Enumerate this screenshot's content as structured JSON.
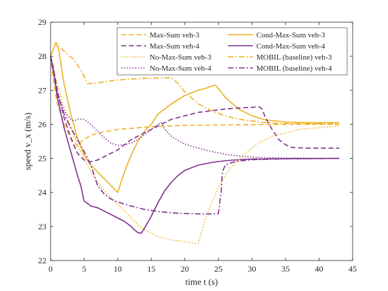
{
  "chart_data": {
    "type": "line",
    "xlabel": "time t (s)",
    "ylabel": "speed v_x (m/s)",
    "xlim": [
      0,
      45
    ],
    "ylim": [
      22,
      29
    ],
    "xticks": [
      0,
      5,
      10,
      15,
      20,
      25,
      30,
      35,
      40,
      45
    ],
    "yticks": [
      22,
      23,
      24,
      25,
      26,
      27,
      28,
      29
    ],
    "grid": false,
    "legend_position": "top-right",
    "colors": {
      "veh3": "#EDB120",
      "veh4": "#7E2F8E",
      "axis": "#262626"
    },
    "series": [
      {
        "name": "Max-Sum veh-3",
        "vehicle": "veh3",
        "style": "dashed",
        "points": [
          [
            0,
            28.0
          ],
          [
            0.5,
            27.2
          ],
          [
            1,
            26.6
          ],
          [
            2,
            26.0
          ],
          [
            3,
            25.6
          ],
          [
            4,
            25.35
          ],
          [
            4.6,
            25.5
          ],
          [
            5,
            25.55
          ],
          [
            6,
            25.68
          ],
          [
            8,
            25.78
          ],
          [
            10,
            25.85
          ],
          [
            15,
            25.93
          ],
          [
            20,
            25.97
          ],
          [
            25,
            25.98
          ],
          [
            30,
            25.99
          ],
          [
            35,
            26.0
          ],
          [
            43,
            26.0
          ]
        ]
      },
      {
        "name": "Cond-Max-Sum veh-3",
        "vehicle": "veh3",
        "style": "solid",
        "points": [
          [
            0,
            28.0
          ],
          [
            0.8,
            28.4
          ],
          [
            1.2,
            28.2
          ],
          [
            2,
            27.2
          ],
          [
            3,
            26.3
          ],
          [
            4,
            25.6
          ],
          [
            5,
            25.1
          ],
          [
            6,
            24.8
          ],
          [
            7,
            24.6
          ],
          [
            8,
            24.4
          ],
          [
            9,
            24.2
          ],
          [
            10,
            24.0
          ],
          [
            10.5,
            24.3
          ],
          [
            11,
            24.6
          ],
          [
            12,
            25.1
          ],
          [
            13,
            25.5
          ],
          [
            14,
            25.8
          ],
          [
            15,
            26.0
          ],
          [
            16,
            26.3
          ],
          [
            18,
            26.6
          ],
          [
            20,
            26.85
          ],
          [
            22,
            27.0
          ],
          [
            23,
            27.05
          ],
          [
            24,
            27.12
          ],
          [
            24.6,
            27.15
          ],
          [
            26,
            26.8
          ],
          [
            28,
            26.45
          ],
          [
            30,
            26.25
          ],
          [
            32,
            26.13
          ],
          [
            35,
            26.07
          ],
          [
            38,
            26.05
          ],
          [
            43,
            26.05
          ]
        ]
      },
      {
        "name": "Max-Sum veh-4",
        "vehicle": "veh4",
        "style": "dashed",
        "points": [
          [
            0,
            28.0
          ],
          [
            0.3,
            27.8
          ],
          [
            1,
            27.0
          ],
          [
            2,
            26.2
          ],
          [
            3,
            25.6
          ],
          [
            4,
            25.15
          ],
          [
            5,
            24.95
          ],
          [
            6,
            24.9
          ],
          [
            7,
            24.95
          ],
          [
            8,
            25.05
          ],
          [
            9,
            25.15
          ],
          [
            10,
            25.25
          ],
          [
            11,
            25.4
          ],
          [
            12,
            25.55
          ],
          [
            13,
            25.65
          ],
          [
            14,
            25.75
          ],
          [
            15,
            25.85
          ],
          [
            16,
            25.95
          ],
          [
            17,
            26.05
          ],
          [
            18,
            26.15
          ],
          [
            20,
            26.25
          ],
          [
            22,
            26.35
          ],
          [
            24,
            26.4
          ],
          [
            26,
            26.45
          ],
          [
            28,
            26.48
          ],
          [
            30,
            26.5
          ],
          [
            31,
            26.52
          ],
          [
            31.5,
            26.45
          ],
          [
            32,
            26.2
          ],
          [
            33,
            25.85
          ],
          [
            34,
            25.55
          ],
          [
            35,
            25.4
          ],
          [
            36,
            25.32
          ],
          [
            38,
            25.3
          ],
          [
            43,
            25.3
          ]
        ]
      },
      {
        "name": "Cond-Max-Sum veh-4",
        "vehicle": "veh4",
        "style": "solid",
        "points": [
          [
            0,
            28.0
          ],
          [
            0.5,
            27.5
          ],
          [
            1,
            26.8
          ],
          [
            2,
            25.9
          ],
          [
            3,
            25.2
          ],
          [
            4,
            24.5
          ],
          [
            4.5,
            24.2
          ],
          [
            5,
            23.75
          ],
          [
            6,
            23.6
          ],
          [
            7,
            23.55
          ],
          [
            8,
            23.45
          ],
          [
            9,
            23.35
          ],
          [
            10,
            23.25
          ],
          [
            11,
            23.15
          ],
          [
            12,
            23.0
          ],
          [
            12.5,
            22.9
          ],
          [
            13,
            22.82
          ],
          [
            13.5,
            22.8
          ],
          [
            14,
            22.95
          ],
          [
            15,
            23.3
          ],
          [
            16,
            23.7
          ],
          [
            17,
            24.05
          ],
          [
            18,
            24.3
          ],
          [
            19,
            24.5
          ],
          [
            20,
            24.65
          ],
          [
            22,
            24.8
          ],
          [
            24,
            24.88
          ],
          [
            26,
            24.93
          ],
          [
            28,
            24.96
          ],
          [
            30,
            24.98
          ],
          [
            35,
            24.99
          ],
          [
            43,
            25.0
          ]
        ]
      },
      {
        "name": "No-Max-Sum veh-3",
        "vehicle": "veh3",
        "style": "dotted",
        "points": [
          [
            0,
            28.0
          ],
          [
            1,
            27.2
          ],
          [
            2,
            26.5
          ],
          [
            3,
            25.9
          ],
          [
            4,
            25.4
          ],
          [
            5,
            25.0
          ],
          [
            6,
            24.6
          ],
          [
            7,
            24.3
          ],
          [
            8,
            24.05
          ],
          [
            9,
            23.85
          ],
          [
            10,
            23.65
          ],
          [
            11,
            23.45
          ],
          [
            12,
            23.25
          ],
          [
            13,
            23.05
          ],
          [
            14,
            22.9
          ],
          [
            15,
            22.8
          ],
          [
            16,
            22.7
          ],
          [
            18,
            22.6
          ],
          [
            20,
            22.55
          ],
          [
            21,
            22.52
          ],
          [
            22,
            22.5
          ],
          [
            23,
            23.2
          ],
          [
            24,
            23.7
          ],
          [
            25,
            24.15
          ],
          [
            26,
            24.5
          ],
          [
            27,
            24.75
          ],
          [
            28,
            24.95
          ],
          [
            29,
            25.15
          ],
          [
            30,
            25.3
          ],
          [
            31,
            25.45
          ],
          [
            32,
            25.55
          ],
          [
            33,
            25.65
          ],
          [
            35,
            25.75
          ],
          [
            37,
            25.85
          ],
          [
            40,
            25.9
          ],
          [
            43,
            25.95
          ]
        ]
      },
      {
        "name": "MOBIL (baseline) veh-3",
        "vehicle": "veh3",
        "style": "dashdot",
        "points": [
          [
            0,
            28.0
          ],
          [
            0.8,
            28.4
          ],
          [
            1.5,
            28.25
          ],
          [
            2.5,
            28.05
          ],
          [
            3.5,
            27.9
          ],
          [
            4.5,
            27.6
          ],
          [
            5.5,
            27.2
          ],
          [
            6,
            27.2
          ],
          [
            7,
            27.22
          ],
          [
            8,
            27.25
          ],
          [
            10,
            27.3
          ],
          [
            12,
            27.33
          ],
          [
            14,
            27.35
          ],
          [
            16,
            27.36
          ],
          [
            18,
            27.37
          ],
          [
            19,
            27.2
          ],
          [
            20,
            26.95
          ],
          [
            22,
            26.6
          ],
          [
            24,
            26.4
          ],
          [
            26,
            26.25
          ],
          [
            28,
            26.15
          ],
          [
            30,
            26.1
          ],
          [
            32,
            26.05
          ],
          [
            34,
            26.03
          ],
          [
            36,
            26.02
          ],
          [
            43,
            26.02
          ]
        ]
      },
      {
        "name": "No-Max-Sum veh-4",
        "vehicle": "veh4",
        "style": "dotted",
        "points": [
          [
            0,
            28.0
          ],
          [
            0.5,
            27.4
          ],
          [
            1,
            26.9
          ],
          [
            2,
            26.4
          ],
          [
            3,
            26.15
          ],
          [
            3.5,
            26.1
          ],
          [
            4,
            26.15
          ],
          [
            5,
            26.15
          ],
          [
            6,
            26.0
          ],
          [
            7,
            25.8
          ],
          [
            8,
            25.6
          ],
          [
            9,
            25.45
          ],
          [
            10,
            25.38
          ],
          [
            11,
            25.4
          ],
          [
            12,
            25.45
          ],
          [
            13,
            25.55
          ],
          [
            14,
            25.7
          ],
          [
            15,
            25.85
          ],
          [
            16,
            26.0
          ],
          [
            16.5,
            26.05
          ],
          [
            17,
            25.85
          ],
          [
            18,
            25.65
          ],
          [
            19,
            25.52
          ],
          [
            20,
            25.42
          ],
          [
            22,
            25.3
          ],
          [
            24,
            25.2
          ],
          [
            26,
            25.12
          ],
          [
            28,
            25.07
          ],
          [
            30,
            25.04
          ],
          [
            32,
            25.02
          ],
          [
            35,
            25.01
          ],
          [
            43,
            25.0
          ]
        ]
      },
      {
        "name": "MOBIL (baseline) veh-4",
        "vehicle": "veh4",
        "style": "dashdot",
        "points": [
          [
            0,
            28.0
          ],
          [
            0.5,
            27.5
          ],
          [
            1,
            26.9
          ],
          [
            2,
            26.3
          ],
          [
            3,
            25.9
          ],
          [
            4,
            25.55
          ],
          [
            5,
            25.2
          ],
          [
            6,
            24.8
          ],
          [
            6.5,
            24.5
          ],
          [
            7,
            24.2
          ],
          [
            8,
            23.95
          ],
          [
            9,
            23.8
          ],
          [
            10,
            23.72
          ],
          [
            12,
            23.6
          ],
          [
            14,
            23.5
          ],
          [
            16,
            23.44
          ],
          [
            18,
            23.4
          ],
          [
            20,
            23.38
          ],
          [
            22,
            23.37
          ],
          [
            24,
            23.37
          ],
          [
            25,
            23.38
          ],
          [
            25.4,
            24.0
          ],
          [
            25.6,
            24.6
          ],
          [
            26,
            24.8
          ],
          [
            27,
            24.88
          ],
          [
            28,
            24.92
          ],
          [
            30,
            24.96
          ],
          [
            33,
            24.98
          ],
          [
            36,
            24.99
          ],
          [
            43,
            25.0
          ]
        ]
      }
    ]
  }
}
